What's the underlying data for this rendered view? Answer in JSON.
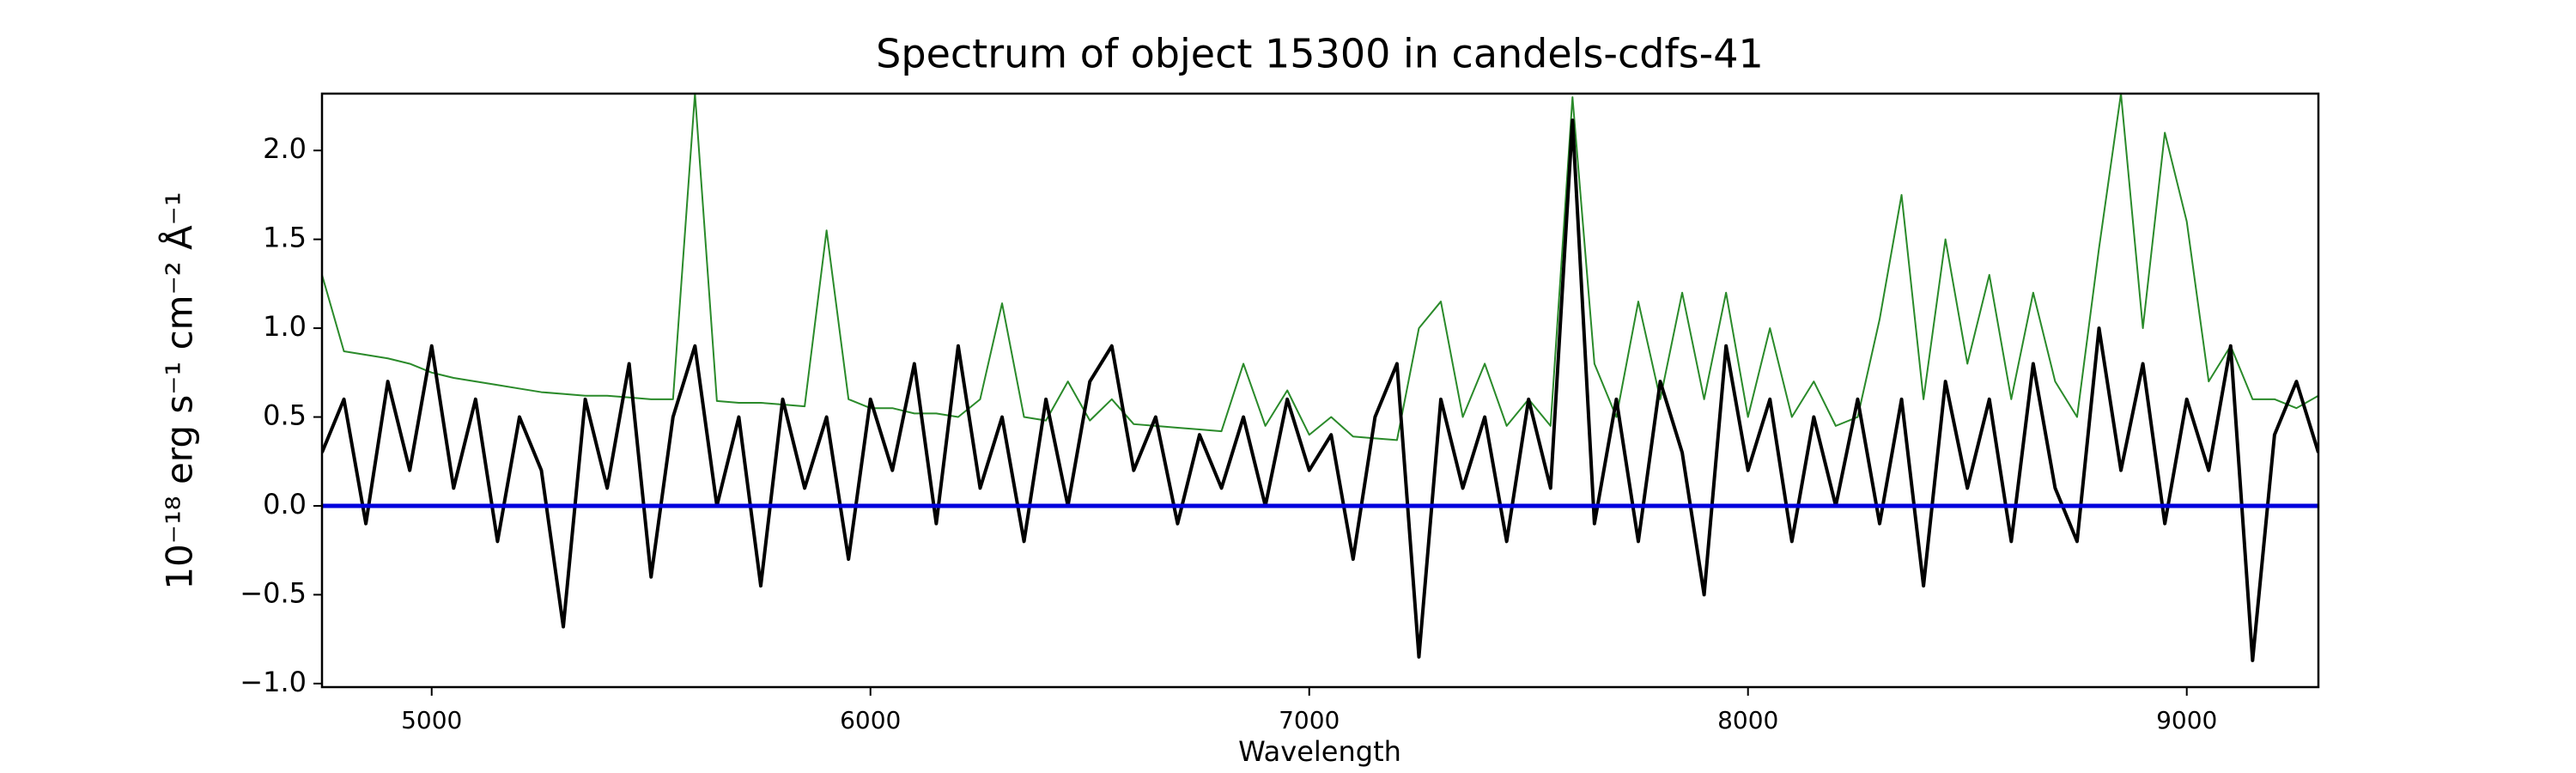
{
  "chart_data": {
    "type": "line",
    "title": "Spectrum of object 15300 in candels-cdfs-41",
    "xlabel": "Wavelength",
    "ylabel": "10⁻¹⁸ erg s⁻¹ cm⁻² Å⁻¹",
    "x": [
      4750,
      4800,
      4850,
      4900,
      4950,
      5000,
      5050,
      5100,
      5150,
      5200,
      5250,
      5300,
      5350,
      5400,
      5450,
      5500,
      5550,
      5600,
      5650,
      5700,
      5750,
      5800,
      5850,
      5900,
      5950,
      6000,
      6050,
      6100,
      6150,
      6200,
      6250,
      6300,
      6350,
      6400,
      6450,
      6500,
      6550,
      6600,
      6650,
      6700,
      6750,
      6800,
      6850,
      6900,
      6950,
      7000,
      7050,
      7100,
      7150,
      7200,
      7250,
      7300,
      7350,
      7400,
      7450,
      7500,
      7550,
      7600,
      7650,
      7700,
      7750,
      7800,
      7850,
      7900,
      7950,
      8000,
      8050,
      8100,
      8150,
      8200,
      8250,
      8300,
      8350,
      8400,
      8450,
      8500,
      8550,
      8600,
      8650,
      8700,
      8750,
      8800,
      8850,
      8900,
      8950,
      9000,
      9050,
      9100,
      9150,
      9200,
      9250,
      9300
    ],
    "series": [
      {
        "color": "#2a8a2a",
        "width": 2,
        "values": [
          1.3,
          0.87,
          0.85,
          0.83,
          0.8,
          0.75,
          0.72,
          0.7,
          0.68,
          0.66,
          0.64,
          0.63,
          0.62,
          0.62,
          0.61,
          0.6,
          0.6,
          2.32,
          0.59,
          0.58,
          0.58,
          0.57,
          0.56,
          1.55,
          0.6,
          0.55,
          0.55,
          0.52,
          0.52,
          0.5,
          0.6,
          1.14,
          0.5,
          0.48,
          0.7,
          0.48,
          0.6,
          0.46,
          0.45,
          0.44,
          0.43,
          0.42,
          0.8,
          0.45,
          0.65,
          0.4,
          0.5,
          0.39,
          0.38,
          0.37,
          1.0,
          1.15,
          0.5,
          0.8,
          0.45,
          0.6,
          0.45,
          2.3,
          0.8,
          0.5,
          1.15,
          0.6,
          1.2,
          0.6,
          1.2,
          0.5,
          1.0,
          0.5,
          0.7,
          0.45,
          0.5,
          1.05,
          1.75,
          0.6,
          1.5,
          0.8,
          1.3,
          0.6,
          1.2,
          0.7,
          0.5,
          1.45,
          2.32,
          1.0,
          2.1,
          1.6,
          0.7,
          0.9,
          0.6,
          0.6,
          0.55,
          0.62
        ]
      },
      {
        "color": "#000000",
        "width": 4,
        "values": [
          0.3,
          0.6,
          -0.1,
          0.7,
          0.2,
          0.9,
          0.1,
          0.6,
          -0.2,
          0.5,
          0.2,
          -0.68,
          0.6,
          0.1,
          0.8,
          -0.4,
          0.5,
          0.9,
          0.0,
          0.5,
          -0.45,
          0.6,
          0.1,
          0.5,
          -0.3,
          0.6,
          0.2,
          0.8,
          -0.1,
          0.9,
          0.1,
          0.5,
          -0.2,
          0.6,
          0.0,
          0.7,
          0.9,
          0.2,
          0.5,
          -0.1,
          0.4,
          0.1,
          0.5,
          0.0,
          0.6,
          0.2,
          0.4,
          -0.3,
          0.5,
          0.8,
          -0.85,
          0.6,
          0.1,
          0.5,
          -0.2,
          0.6,
          0.1,
          2.17,
          -0.1,
          0.6,
          -0.2,
          0.7,
          0.3,
          -0.5,
          0.9,
          0.2,
          0.6,
          -0.2,
          0.5,
          0.0,
          0.6,
          -0.1,
          0.6,
          -0.45,
          0.7,
          0.1,
          0.6,
          -0.2,
          0.8,
          0.1,
          -0.2,
          1.0,
          0.2,
          0.8,
          -0.1,
          0.6,
          0.2,
          0.9,
          -0.87,
          0.4,
          0.7,
          0.3
        ]
      }
    ],
    "hline": {
      "value": 0,
      "color": "#0000dd"
    },
    "xlim": [
      4750,
      9300
    ],
    "ylim": [
      -1.02,
      2.32
    ],
    "xticks": [
      5000,
      6000,
      7000,
      8000,
      9000
    ],
    "yticks": [
      {
        "value": -1,
        "label": "−1.0"
      },
      {
        "value": -0.5,
        "label": "−0.5"
      },
      {
        "value": 0,
        "label": "0.0"
      },
      {
        "value": 0.5,
        "label": "0.5"
      },
      {
        "value": 1,
        "label": "1.0"
      },
      {
        "value": 1.5,
        "label": "1.5"
      },
      {
        "value": 2,
        "label": "2.0"
      }
    ],
    "grid": false
  }
}
